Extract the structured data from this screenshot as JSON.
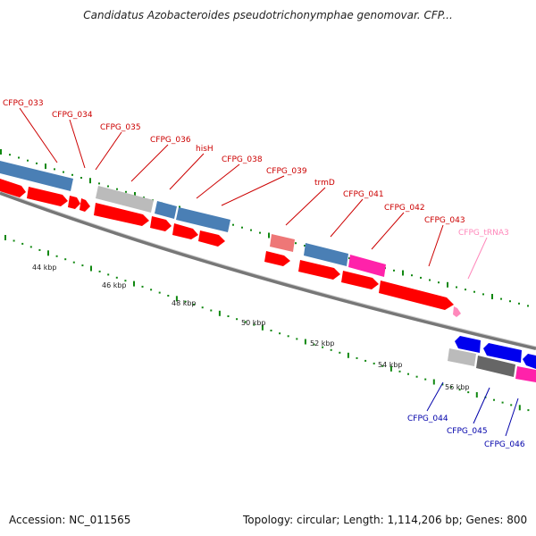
{
  "title": "Candidatus Azobacteroides pseudotrichonymphae genomovar. CFP...",
  "footer": {
    "accession": "Accession: NC_011565",
    "summary": "Topology: circular; Length: 1,114,206 bp; Genes: 800"
  },
  "colors": {
    "cds_forward": "#ff0000",
    "cds_reverse": "#0000ee",
    "label_forward": "#cc0000",
    "label_reverse": "#0000aa",
    "trna": "#ff88bb",
    "cog_blue": "#4a7fb5",
    "cog_magenta": "#ff22aa",
    "cog_gray": "#bbbbbb",
    "cog_dark": "#666666",
    "cog_salmon": "#ee7777",
    "tick": "#118811"
  },
  "kbp_labels": [
    "44 kbp",
    "46 kbp",
    "48 kbp",
    "50 kbp",
    "52 kbp",
    "54 kbp",
    "56 kbp"
  ],
  "gene_labels": [
    {
      "text": "CFPG_033",
      "strand": "forward"
    },
    {
      "text": "CFPG_034",
      "strand": "forward"
    },
    {
      "text": "CFPG_035",
      "strand": "forward"
    },
    {
      "text": "CFPG_036",
      "strand": "forward"
    },
    {
      "text": "hisH",
      "strand": "forward"
    },
    {
      "text": "CFPG_038",
      "strand": "forward"
    },
    {
      "text": "CFPG_039",
      "strand": "forward"
    },
    {
      "text": "trmD",
      "strand": "forward"
    },
    {
      "text": "CFPG_041",
      "strand": "forward"
    },
    {
      "text": "CFPG_042",
      "strand": "forward"
    },
    {
      "text": "CFPG_043",
      "strand": "forward"
    },
    {
      "text": "CFPG_tRNA3",
      "strand": "trna"
    },
    {
      "text": "CFPG_044",
      "strand": "reverse"
    },
    {
      "text": "CFPG_045",
      "strand": "reverse"
    },
    {
      "text": "CFPG_046",
      "strand": "reverse"
    }
  ]
}
